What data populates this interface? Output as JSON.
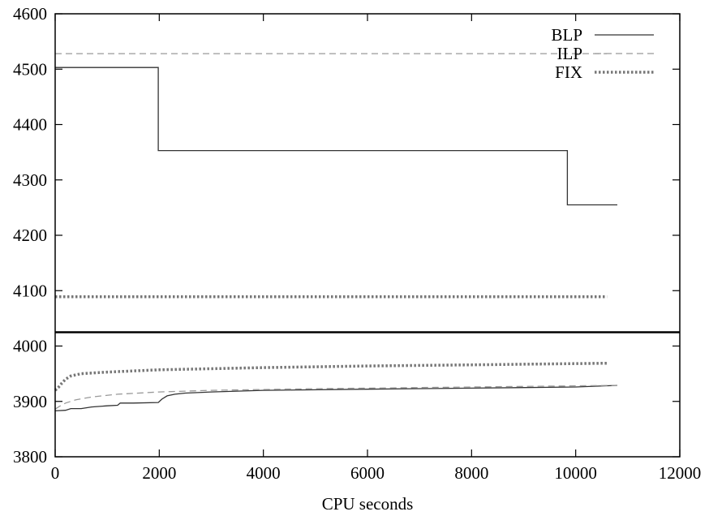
{
  "chart_data": {
    "type": "line",
    "title": "",
    "xlabel": "CPU seconds",
    "ylabel": "",
    "xlim": [
      0,
      12000
    ],
    "ylim": [
      3800,
      4600
    ],
    "x_ticks": [
      0,
      2000,
      4000,
      6000,
      8000,
      10000,
      12000
    ],
    "y_ticks": [
      3800,
      3900,
      4000,
      4100,
      4200,
      4300,
      4400,
      4500,
      4600
    ],
    "split_line_y": 4025,
    "grid": false,
    "legend_position": "top-right",
    "series": [
      {
        "name": "BLP",
        "color": "#333333",
        "style": "solid",
        "points": [
          [
            0,
            4503
          ],
          [
            1980,
            4503
          ],
          [
            1980,
            4353
          ],
          [
            9840,
            4353
          ],
          [
            9840,
            4255
          ],
          [
            10800,
            4255
          ]
        ]
      },
      {
        "name": "ILP",
        "color": "#999999",
        "style": "dashed",
        "points": [
          [
            0,
            4528
          ],
          [
            10600,
            4528
          ]
        ]
      },
      {
        "name": "FIX",
        "color": "#777777",
        "style": "dotted",
        "points": [
          [
            0,
            4089
          ],
          [
            10600,
            4089
          ]
        ]
      },
      {
        "name": "",
        "color": "#333333",
        "style": "solid",
        "points": [
          [
            0,
            3883
          ],
          [
            200,
            3884
          ],
          [
            300,
            3887
          ],
          [
            500,
            3887
          ],
          [
            700,
            3890
          ],
          [
            1000,
            3892
          ],
          [
            1200,
            3893
          ],
          [
            1250,
            3897
          ],
          [
            1500,
            3897
          ],
          [
            1980,
            3898
          ],
          [
            2050,
            3904
          ],
          [
            2150,
            3910
          ],
          [
            2300,
            3913
          ],
          [
            2500,
            3915
          ],
          [
            3000,
            3917
          ],
          [
            4000,
            3920
          ],
          [
            6000,
            3922
          ],
          [
            8000,
            3924
          ],
          [
            10000,
            3926
          ],
          [
            10800,
            3929
          ]
        ]
      },
      {
        "name": "",
        "color": "#999999",
        "style": "dashed",
        "points": [
          [
            0,
            3886
          ],
          [
            80,
            3891
          ],
          [
            200,
            3897
          ],
          [
            400,
            3903
          ],
          [
            700,
            3908
          ],
          [
            1200,
            3913
          ],
          [
            2000,
            3917
          ],
          [
            3000,
            3920
          ],
          [
            5000,
            3923
          ],
          [
            8000,
            3926
          ],
          [
            10800,
            3929
          ]
        ]
      },
      {
        "name": "",
        "color": "#777777",
        "style": "dotted",
        "points": [
          [
            0,
            3920
          ],
          [
            60,
            3925
          ],
          [
            120,
            3932
          ],
          [
            200,
            3940
          ],
          [
            300,
            3946
          ],
          [
            500,
            3950
          ],
          [
            1000,
            3953
          ],
          [
            2000,
            3957
          ],
          [
            4000,
            3961
          ],
          [
            6000,
            3964
          ],
          [
            8000,
            3966
          ],
          [
            10600,
            3969
          ]
        ]
      }
    ]
  }
}
